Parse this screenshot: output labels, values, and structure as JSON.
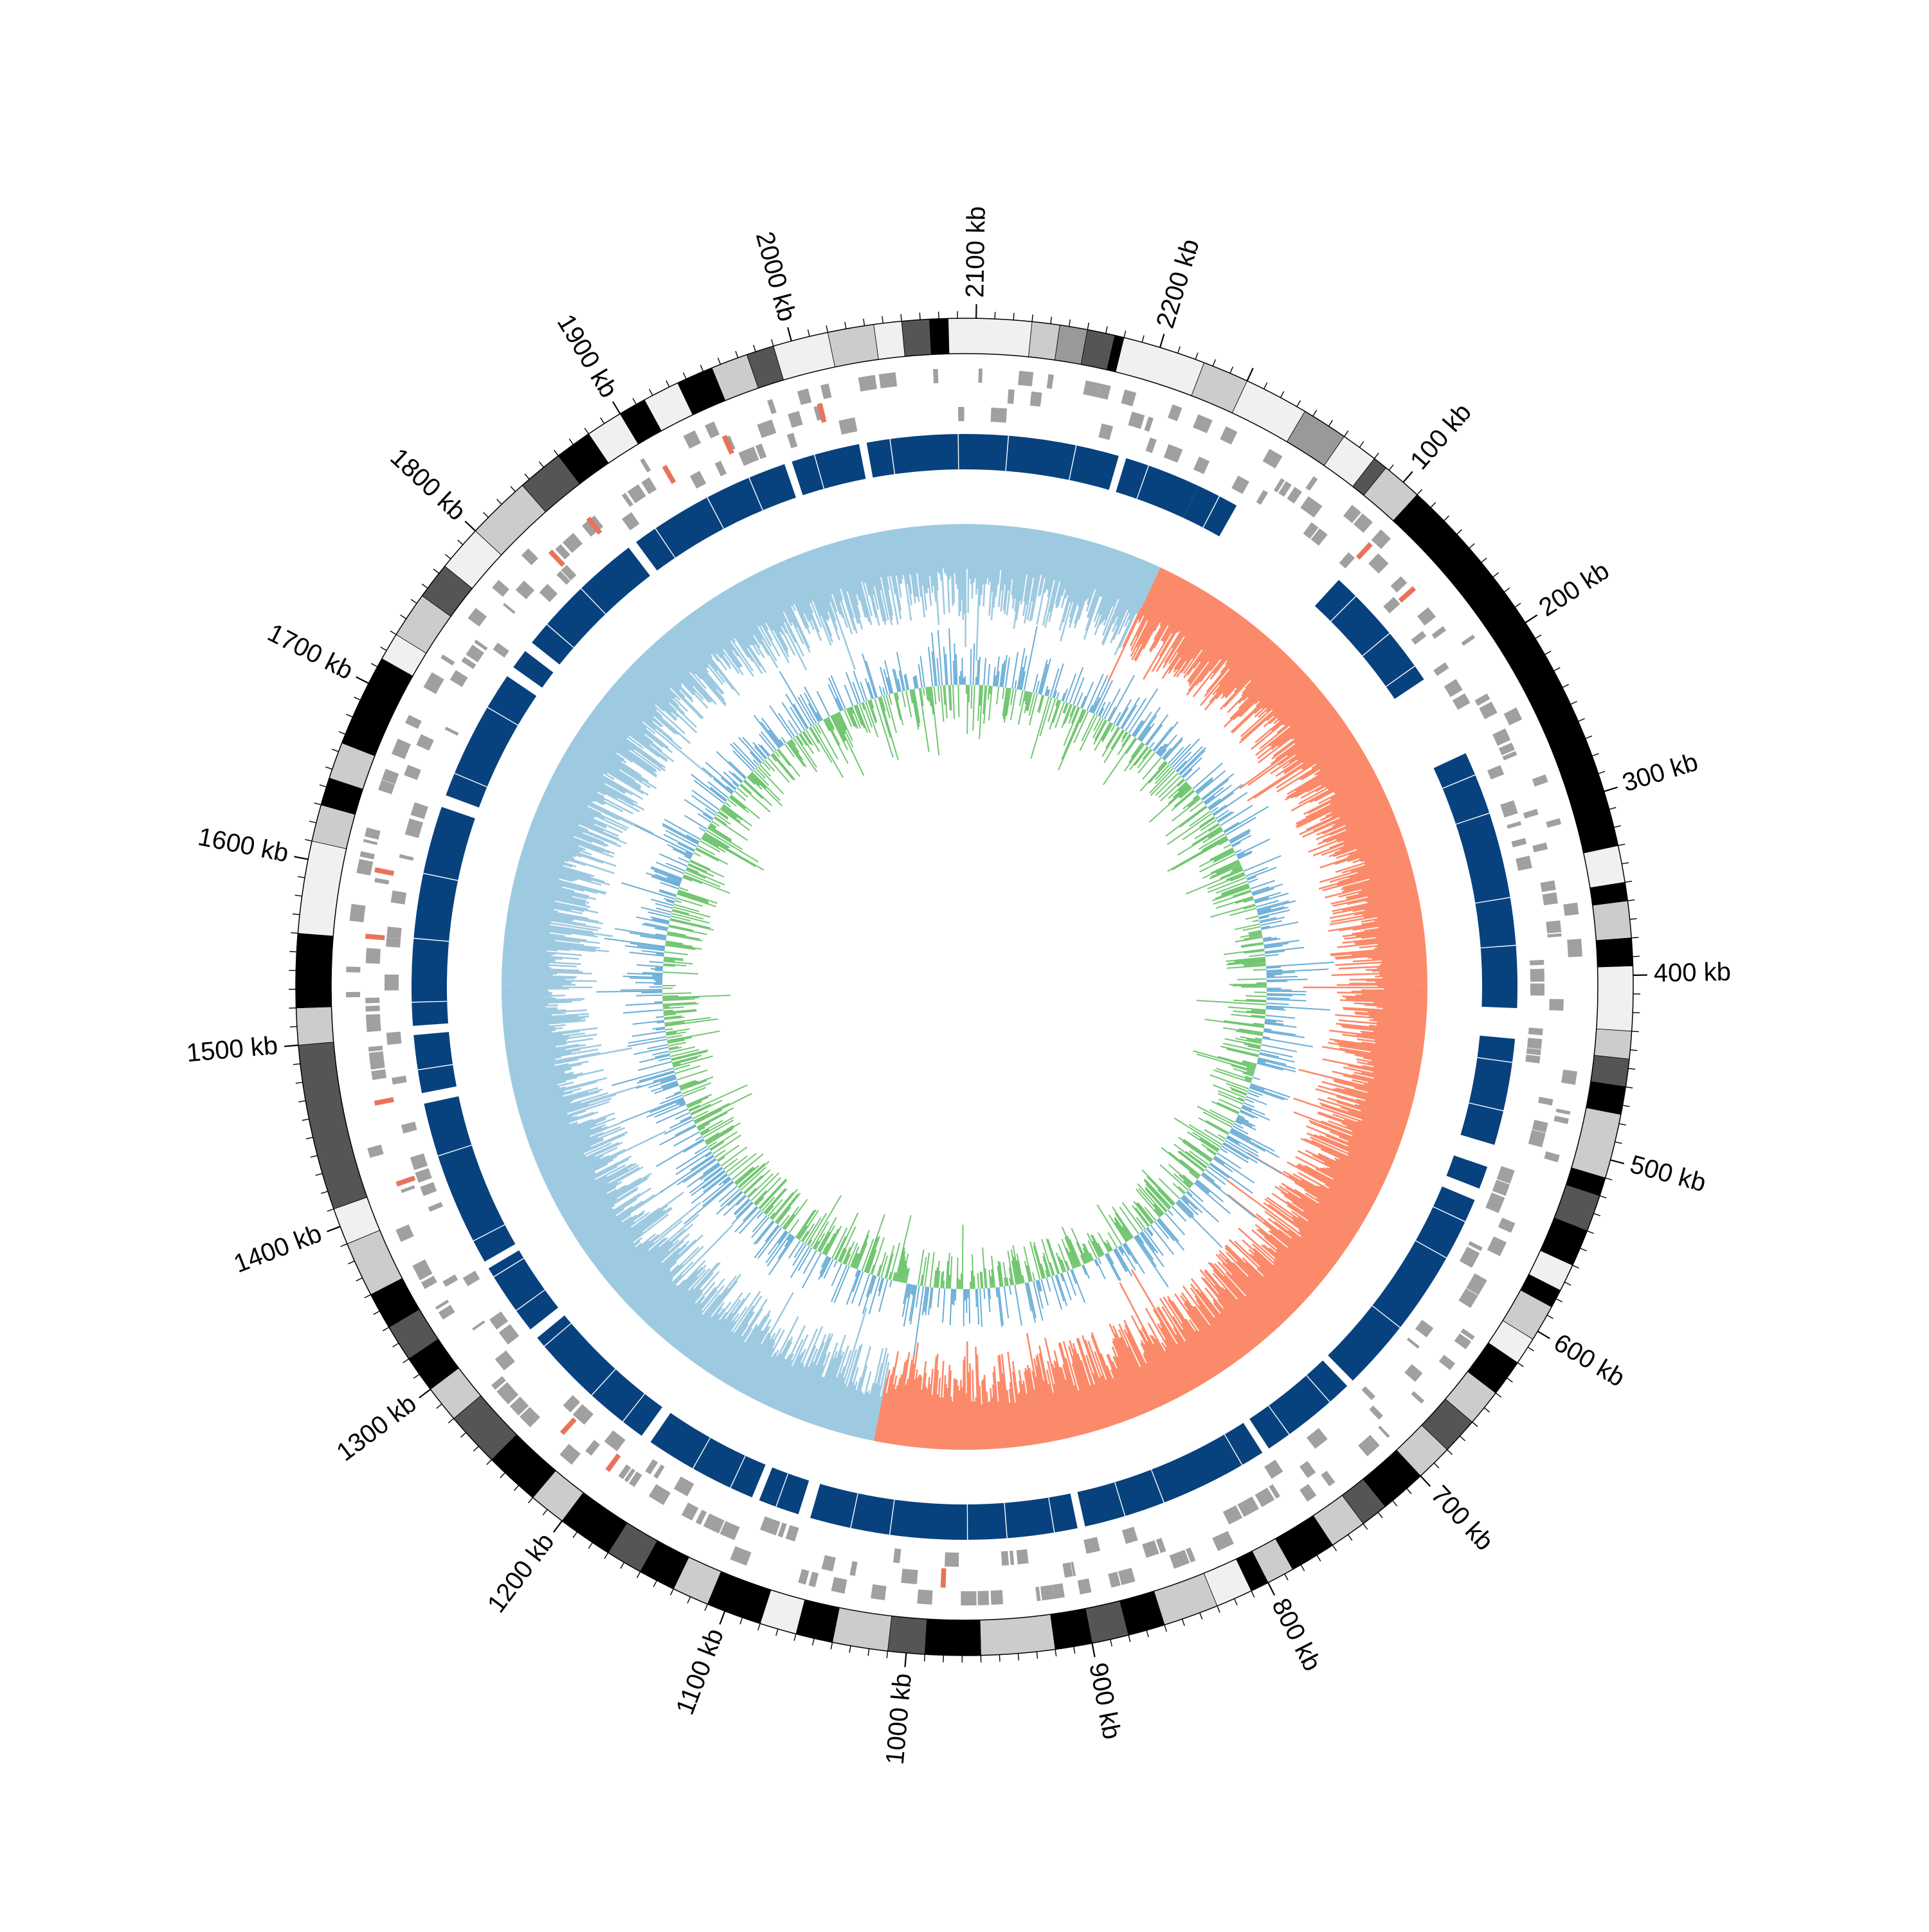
{
  "genome": {
    "total_kb": 2250,
    "tick_labels": [
      {
        "kb": 100,
        "label": "100 kb"
      },
      {
        "kb": 200,
        "label": "200 kb"
      },
      {
        "kb": 300,
        "label": "300 kb"
      },
      {
        "kb": 400,
        "label": "400 kb"
      },
      {
        "kb": 500,
        "label": "500 kb"
      },
      {
        "kb": 600,
        "label": "600 kb"
      },
      {
        "kb": 700,
        "label": "700 kb"
      },
      {
        "kb": 800,
        "label": "800 kb"
      },
      {
        "kb": 900,
        "label": "900 kb"
      },
      {
        "kb": 1000,
        "label": "1000 kb"
      },
      {
        "kb": 1100,
        "label": "1100 kb"
      },
      {
        "kb": 1200,
        "label": "1200 kb"
      },
      {
        "kb": 1300,
        "label": "1300 kb"
      },
      {
        "kb": 1400,
        "label": "1400 kb"
      },
      {
        "kb": 1500,
        "label": "1500 kb"
      },
      {
        "kb": 1600,
        "label": "1600 kb"
      },
      {
        "kb": 1700,
        "label": "1700 kb"
      },
      {
        "kb": 1800,
        "label": "1800 kb"
      },
      {
        "kb": 1900,
        "label": "1900 kb"
      },
      {
        "kb": 2000,
        "label": "2000 kb"
      },
      {
        "kb": 2100,
        "label": "2100 kb"
      },
      {
        "kb": 2200,
        "label": "2200 kb"
      }
    ]
  },
  "colors": {
    "ideogram_black": "#000000",
    "ideogram_dark": "#555555",
    "ideogram_mid": "#999999",
    "ideogram_light": "#cccccc",
    "ideogram_white": "#f0f0f0",
    "gene_gray": "#a0a0a0",
    "gene_red": "#e8735a",
    "syntenic_block": "#08427e",
    "syntenic_light": "#2a7fc1",
    "skew_positive": "#fb8a6a",
    "skew_negative": "#9ecae1",
    "gc_blue": "#6aaed6",
    "gc_green": "#72c672"
  },
  "chart_data": {
    "type": "circular-genome",
    "tracks": [
      {
        "name": "",
        "kind": "ideogram-bands",
        "bands": [
          {
            "start": 0,
            "end": 35,
            "shade": "white"
          },
          {
            "start": 35,
            "end": 60,
            "shade": "mid"
          },
          {
            "start": 60,
            "end": 80,
            "shade": "white"
          },
          {
            "start": 80,
            "end": 88,
            "shade": "dark"
          },
          {
            "start": 88,
            "end": 110,
            "shade": "light"
          },
          {
            "start": 110,
            "end": 330,
            "shade": "black"
          },
          {
            "start": 330,
            "end": 350,
            "shade": "white"
          },
          {
            "start": 350,
            "end": 360,
            "shade": "black"
          },
          {
            "start": 360,
            "end": 380,
            "shade": "light"
          },
          {
            "start": 380,
            "end": 395,
            "shade": "black"
          },
          {
            "start": 395,
            "end": 430,
            "shade": "white"
          },
          {
            "start": 430,
            "end": 445,
            "shade": "light"
          },
          {
            "start": 445,
            "end": 460,
            "shade": "dark"
          },
          {
            "start": 460,
            "end": 475,
            "shade": "black"
          },
          {
            "start": 475,
            "end": 510,
            "shade": "light"
          },
          {
            "start": 510,
            "end": 520,
            "shade": "black"
          },
          {
            "start": 520,
            "end": 540,
            "shade": "dark"
          },
          {
            "start": 540,
            "end": 560,
            "shade": "black"
          },
          {
            "start": 560,
            "end": 575,
            "shade": "white"
          },
          {
            "start": 575,
            "end": 585,
            "shade": "black"
          },
          {
            "start": 585,
            "end": 605,
            "shade": "light"
          },
          {
            "start": 605,
            "end": 620,
            "shade": "white"
          },
          {
            "start": 620,
            "end": 640,
            "shade": "black"
          },
          {
            "start": 640,
            "end": 660,
            "shade": "light"
          },
          {
            "start": 660,
            "end": 680,
            "shade": "dark"
          },
          {
            "start": 680,
            "end": 700,
            "shade": "light"
          },
          {
            "start": 700,
            "end": 725,
            "shade": "black"
          },
          {
            "start": 725,
            "end": 740,
            "shade": "dark"
          },
          {
            "start": 740,
            "end": 760,
            "shade": "light"
          },
          {
            "start": 760,
            "end": 785,
            "shade": "black"
          },
          {
            "start": 785,
            "end": 800,
            "shade": "light"
          },
          {
            "start": 800,
            "end": 810,
            "shade": "black"
          },
          {
            "start": 810,
            "end": 830,
            "shade": "white"
          },
          {
            "start": 830,
            "end": 860,
            "shade": "light"
          },
          {
            "start": 860,
            "end": 880,
            "shade": "black"
          },
          {
            "start": 880,
            "end": 900,
            "shade": "dark"
          },
          {
            "start": 900,
            "end": 920,
            "shade": "black"
          },
          {
            "start": 920,
            "end": 960,
            "shade": "light"
          },
          {
            "start": 960,
            "end": 990,
            "shade": "black"
          },
          {
            "start": 990,
            "end": 1010,
            "shade": "dark"
          },
          {
            "start": 1010,
            "end": 1040,
            "shade": "light"
          },
          {
            "start": 1040,
            "end": 1060,
            "shade": "black"
          },
          {
            "start": 1060,
            "end": 1080,
            "shade": "white"
          },
          {
            "start": 1080,
            "end": 1110,
            "shade": "black"
          },
          {
            "start": 1110,
            "end": 1130,
            "shade": "light"
          },
          {
            "start": 1130,
            "end": 1150,
            "shade": "black"
          },
          {
            "start": 1150,
            "end": 1170,
            "shade": "dark"
          },
          {
            "start": 1170,
            "end": 1200,
            "shade": "black"
          },
          {
            "start": 1200,
            "end": 1220,
            "shade": "light"
          },
          {
            "start": 1220,
            "end": 1250,
            "shade": "black"
          },
          {
            "start": 1250,
            "end": 1280,
            "shade": "dark"
          },
          {
            "start": 1280,
            "end": 1300,
            "shade": "light"
          },
          {
            "start": 1300,
            "end": 1320,
            "shade": "black"
          },
          {
            "start": 1320,
            "end": 1340,
            "shade": "dark"
          },
          {
            "start": 1340,
            "end": 1360,
            "shade": "black"
          },
          {
            "start": 1360,
            "end": 1390,
            "shade": "light"
          },
          {
            "start": 1390,
            "end": 1410,
            "shade": "white"
          },
          {
            "start": 1410,
            "end": 1500,
            "shade": "dark"
          },
          {
            "start": 1500,
            "end": 1520,
            "shade": "light"
          },
          {
            "start": 1520,
            "end": 1560,
            "shade": "black"
          },
          {
            "start": 1560,
            "end": 1610,
            "shade": "white"
          },
          {
            "start": 1610,
            "end": 1630,
            "shade": "light"
          },
          {
            "start": 1630,
            "end": 1645,
            "shade": "black"
          },
          {
            "start": 1645,
            "end": 1665,
            "shade": "light"
          },
          {
            "start": 1665,
            "end": 1715,
            "shade": "black"
          },
          {
            "start": 1715,
            "end": 1730,
            "shade": "white"
          },
          {
            "start": 1730,
            "end": 1755,
            "shade": "light"
          },
          {
            "start": 1755,
            "end": 1775,
            "shade": "dark"
          },
          {
            "start": 1775,
            "end": 1800,
            "shade": "white"
          },
          {
            "start": 1800,
            "end": 1835,
            "shade": "light"
          },
          {
            "start": 1835,
            "end": 1860,
            "shade": "dark"
          },
          {
            "start": 1860,
            "end": 1880,
            "shade": "black"
          },
          {
            "start": 1880,
            "end": 1900,
            "shade": "white"
          },
          {
            "start": 1900,
            "end": 1915,
            "shade": "black"
          },
          {
            "start": 1915,
            "end": 1935,
            "shade": "white"
          },
          {
            "start": 1935,
            "end": 1955,
            "shade": "black"
          },
          {
            "start": 1955,
            "end": 1975,
            "shade": "light"
          },
          {
            "start": 1975,
            "end": 1990,
            "shade": "dark"
          },
          {
            "start": 1990,
            "end": 2020,
            "shade": "white"
          },
          {
            "start": 2020,
            "end": 2045,
            "shade": "light"
          },
          {
            "start": 2045,
            "end": 2060,
            "shade": "white"
          },
          {
            "start": 2060,
            "end": 2075,
            "shade": "dark"
          },
          {
            "start": 2075,
            "end": 2085,
            "shade": "black"
          },
          {
            "start": 2085,
            "end": 2130,
            "shade": "white"
          },
          {
            "start": 2130,
            "end": 2145,
            "shade": "light"
          },
          {
            "start": 2145,
            "end": 2160,
            "shade": "mid"
          },
          {
            "start": 2160,
            "end": 2175,
            "shade": "dark"
          },
          {
            "start": 2175,
            "end": 2180,
            "shade": "black"
          },
          {
            "start": 2180,
            "end": 2225,
            "shade": "white"
          },
          {
            "start": 2225,
            "end": 2250,
            "shade": "light"
          }
        ]
      },
      {
        "name": "",
        "kind": "gene-features",
        "red_features_kb": [
          108,
          145,
          980,
          1195,
          1230,
          1410,
          1460,
          1560,
          1600,
          1820,
          1850,
          1905,
          1945,
          2005
        ]
      },
      {
        "name": "",
        "kind": "syntenic-blocks",
        "blocks": [
          {
            "start": 0,
            "end": 28
          },
          {
            "start": 110,
            "end": 195
          },
          {
            "start": 250,
            "end": 420
          },
          {
            "start": 440,
            "end": 510
          },
          {
            "start": 525,
            "end": 540
          },
          {
            "start": 548,
            "end": 690
          },
          {
            "start": 695,
            "end": 760
          },
          {
            "start": 765,
            "end": 890
          },
          {
            "start": 895,
            "end": 1070
          },
          {
            "start": 1078,
            "end": 1105
          },
          {
            "start": 1110,
            "end": 1185
          },
          {
            "start": 1192,
            "end": 1285
          },
          {
            "start": 1292,
            "end": 1340
          },
          {
            "start": 1345,
            "end": 1455
          },
          {
            "start": 1462,
            "end": 1500
          },
          {
            "start": 1506,
            "end": 1650
          },
          {
            "start": 1658,
            "end": 1745
          },
          {
            "start": 1752,
            "end": 1765
          },
          {
            "start": 1772,
            "end": 1860
          },
          {
            "start": 1866,
            "end": 1975
          },
          {
            "start": 1980,
            "end": 2025
          },
          {
            "start": 2030,
            "end": 2195
          },
          {
            "start": 2200,
            "end": 2250
          }
        ]
      },
      {
        "name": "",
        "kind": "gc-skew",
        "segments": [
          {
            "start": 0,
            "end": 1040,
            "sign": "positive"
          },
          {
            "start": 1040,
            "end": 2250,
            "sign": "negative"
          }
        ]
      },
      {
        "name": "",
        "kind": "gc-content",
        "series": [
          "above",
          "below"
        ]
      }
    ]
  }
}
